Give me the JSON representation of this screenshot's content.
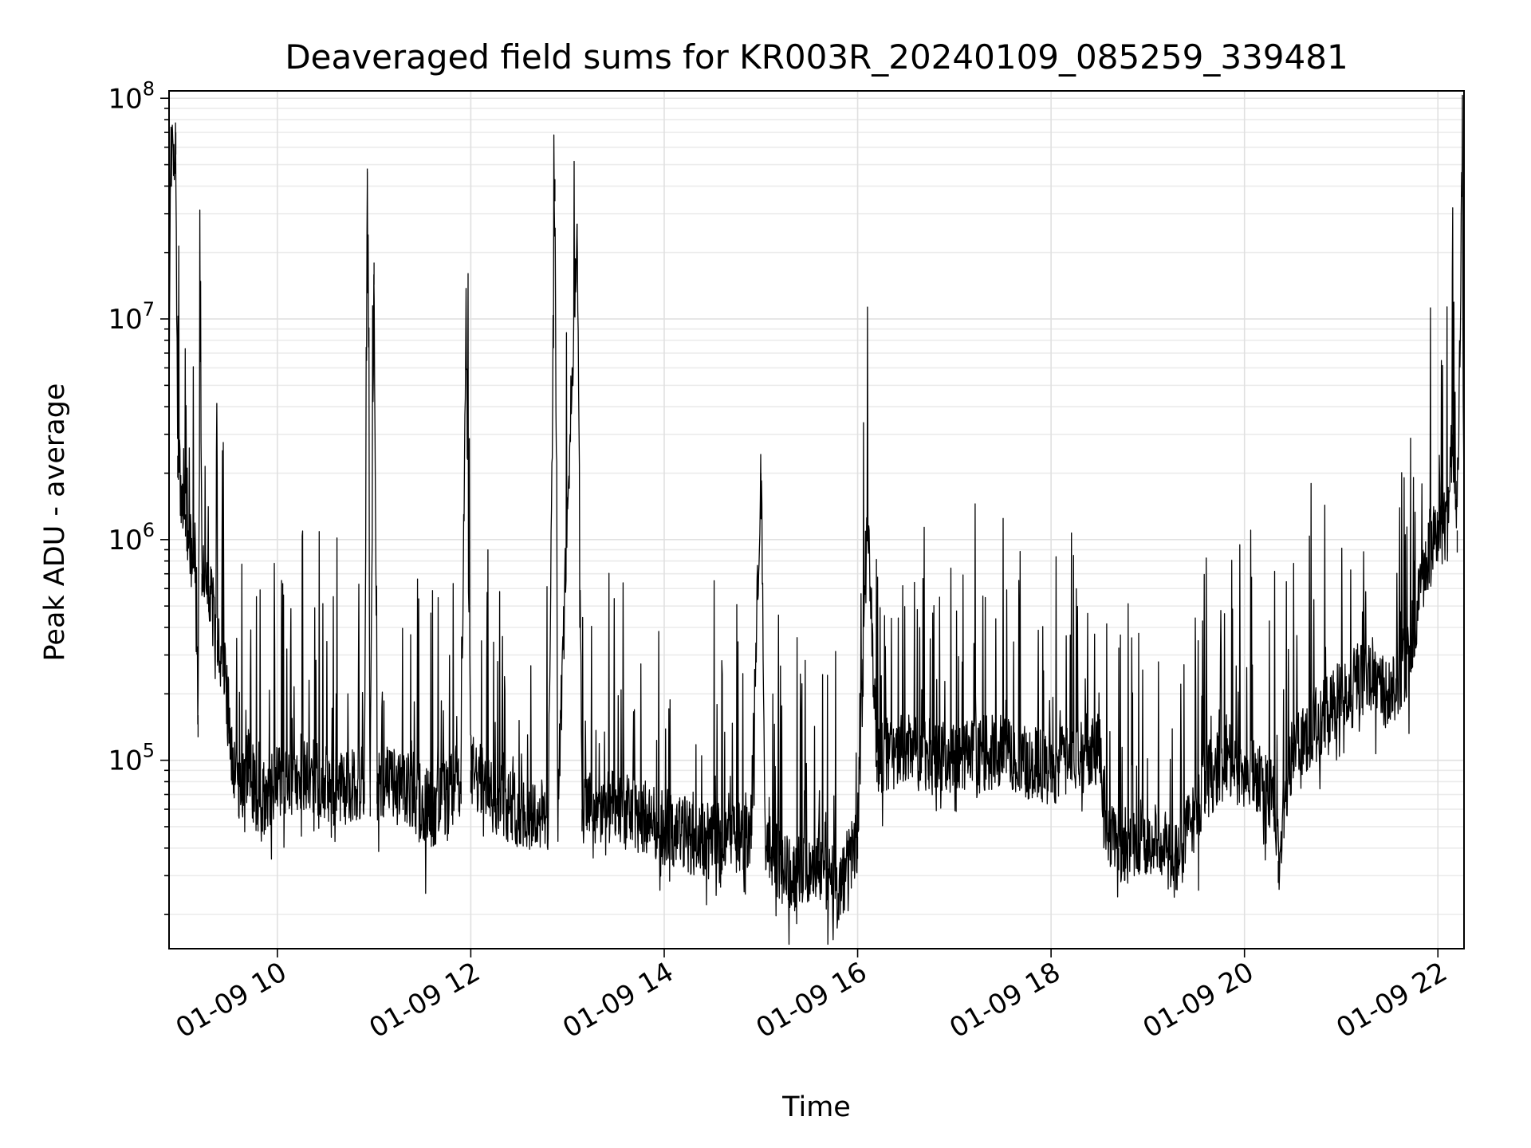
{
  "chart_data": {
    "type": "line",
    "title": "Deaveraged field sums for KR003R_20240109_085259_339481",
    "xlabel": "Time",
    "ylabel": "Peak ADU - average",
    "x_unit": "hours of 2024-01-09",
    "xlim": [
      8.88,
      22.27
    ],
    "ylim": [
      14000,
      108000000
    ],
    "yscale": "log",
    "grid": "major and minor",
    "line_color": "#000000",
    "x_tick_labels": [
      {
        "x": 10,
        "label": "01-09 10"
      },
      {
        "x": 12,
        "label": "01-09 12"
      },
      {
        "x": 14,
        "label": "01-09 14"
      },
      {
        "x": 16,
        "label": "01-09 16"
      },
      {
        "x": 18,
        "label": "01-09 18"
      },
      {
        "x": 20,
        "label": "01-09 20"
      },
      {
        "x": 22,
        "label": "01-09 22"
      }
    ],
    "y_tick_labels": [
      {
        "y": 100000,
        "base": "10",
        "exp": "5"
      },
      {
        "y": 1000000,
        "base": "10",
        "exp": "6"
      },
      {
        "y": 10000000,
        "base": "10",
        "exp": "7"
      },
      {
        "y": 100000000,
        "base": "10",
        "exp": "8"
      }
    ],
    "series": [
      {
        "values": [
          [
            8.88,
            3800000
          ],
          [
            8.9,
            50000000
          ],
          [
            8.93,
            62000000
          ],
          [
            8.95,
            70000000
          ],
          [
            8.97,
            2400000
          ],
          [
            9.0,
            1700000
          ],
          [
            9.05,
            1300000
          ],
          [
            9.1,
            900000
          ],
          [
            9.15,
            800000
          ],
          [
            9.18,
            160000
          ],
          [
            9.2,
            10200000
          ],
          [
            9.22,
            700000
          ],
          [
            9.3,
            550000
          ],
          [
            9.38,
            350000
          ],
          [
            9.45,
            250000
          ],
          [
            9.5,
            150000
          ],
          [
            9.55,
            90000
          ],
          [
            9.6,
            70000
          ],
          [
            9.7,
            100000
          ],
          [
            9.8,
            60000
          ],
          [
            10.0,
            80000
          ],
          [
            10.3,
            90000
          ],
          [
            10.6,
            70000
          ],
          [
            10.9,
            80000
          ],
          [
            10.93,
            48000000
          ],
          [
            10.96,
            70000
          ],
          [
            11.0,
            18000000
          ],
          [
            11.03,
            80000
          ],
          [
            11.3,
            75000
          ],
          [
            11.6,
            60000
          ],
          [
            11.9,
            80000
          ],
          [
            11.95,
            10500000
          ],
          [
            12.0,
            90000
          ],
          [
            12.2,
            70000
          ],
          [
            12.5,
            60000
          ],
          [
            12.8,
            55000
          ],
          [
            12.87,
            43000000
          ],
          [
            12.9,
            60000
          ],
          [
            13.1,
            27000000
          ],
          [
            13.15,
            60000
          ],
          [
            13.5,
            60000
          ],
          [
            13.8,
            55000
          ],
          [
            14.0,
            50000
          ],
          [
            14.3,
            45000
          ],
          [
            14.6,
            40000
          ],
          [
            14.9,
            50000
          ],
          [
            15.0,
            2000000
          ],
          [
            15.05,
            40000
          ],
          [
            15.3,
            30000
          ],
          [
            15.6,
            35000
          ],
          [
            15.8,
            25000
          ],
          [
            16.0,
            45000
          ],
          [
            16.1,
            1250000
          ],
          [
            16.2,
            100000
          ],
          [
            16.5,
            110000
          ],
          [
            17.0,
            100000
          ],
          [
            17.5,
            110000
          ],
          [
            18.0,
            90000
          ],
          [
            18.3,
            110000
          ],
          [
            18.5,
            120000
          ],
          [
            18.55,
            55000
          ],
          [
            18.7,
            40000
          ],
          [
            19.0,
            45000
          ],
          [
            19.3,
            35000
          ],
          [
            19.6,
            80000
          ],
          [
            19.8,
            100000
          ],
          [
            20.0,
            90000
          ],
          [
            20.3,
            70000
          ],
          [
            20.35,
            35000
          ],
          [
            20.5,
            120000
          ],
          [
            20.8,
            150000
          ],
          [
            21.0,
            200000
          ],
          [
            21.3,
            250000
          ],
          [
            21.5,
            200000
          ],
          [
            21.7,
            300000
          ],
          [
            21.9,
            900000
          ],
          [
            22.0,
            1200000
          ],
          [
            22.1,
            1100000
          ],
          [
            22.15,
            3000000
          ],
          [
            22.2,
            1100000
          ],
          [
            22.25,
            45000000
          ],
          [
            22.27,
            1500000
          ]
        ]
      }
    ]
  }
}
